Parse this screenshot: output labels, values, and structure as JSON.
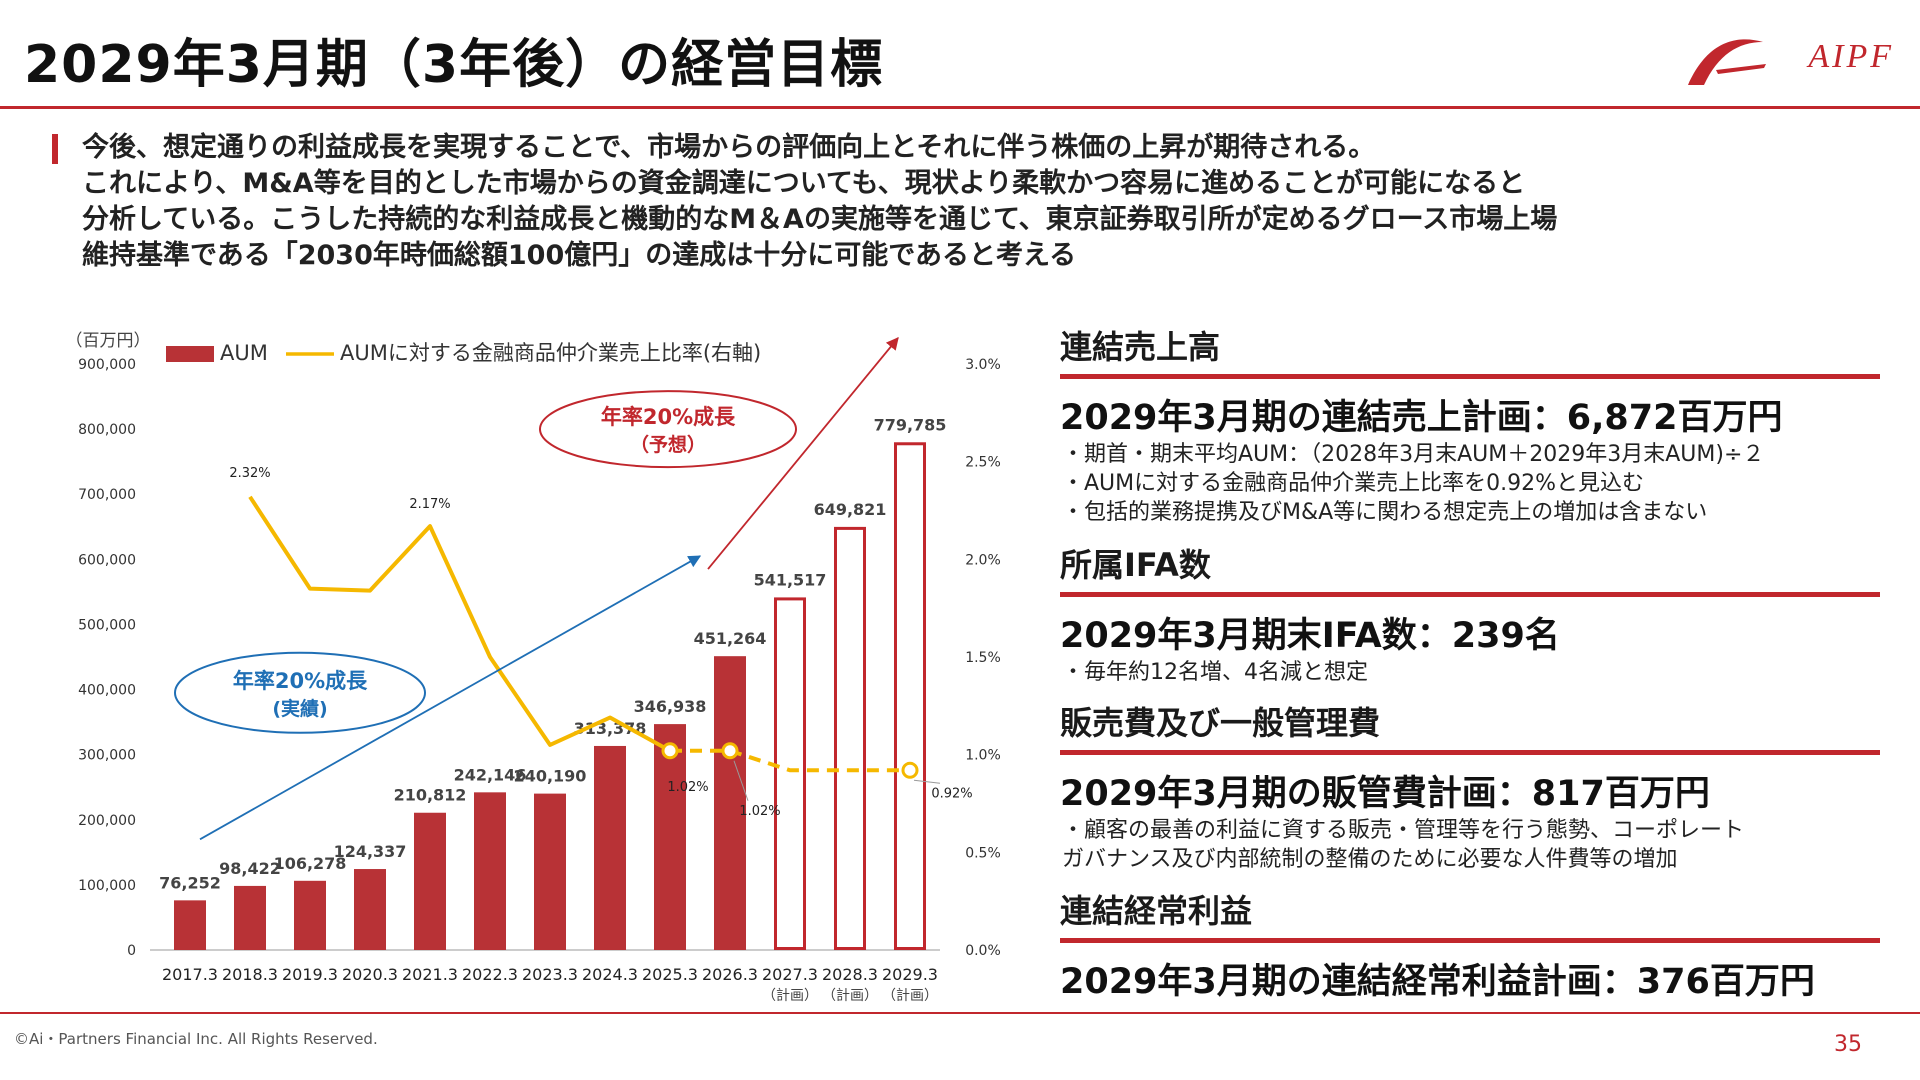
{
  "page": {
    "title": "2029年3月期（3年後）の経営目標",
    "logo_text": "AIPF",
    "intro_lines": [
      "今後、想定通りの利益成長を実現することで、市場からの評価向上とそれに伴う株価の上昇が期待される。",
      "これにより、M&A等を目的とした市場からの資金調達についても、現状より柔軟かつ容易に進めることが可能になると",
      "分析している。こうした持続的な利益成長と機動的なM＆Aの実施等を通じて、東京証券取引所が定めるグロース市場上場",
      "維持基準である「2030年時価総額100億円」の達成は十分に可能であると考える"
    ],
    "copyright": "©Ai・Partners Financial Inc. All Rights Reserved.",
    "page_number": "35"
  },
  "sections": [
    {
      "heading": "連結売上高",
      "main": "2029年3月期の連結売上計画：6,872百万円",
      "notes": [
        "・期首・期末平均AUM：（2028年3月末AUM＋2029年3月末AUM)÷２",
        "・AUMに対する金融商品仲介業売上比率を0.92%と見込む",
        "・包括的業務提携及びM&A等に関わる想定売上の増加は含まない"
      ]
    },
    {
      "heading": "所属IFA数",
      "main": "2029年3月期末IFA数：239名",
      "notes": [
        "・毎年約12名増、4名減と想定"
      ]
    },
    {
      "heading": "販売費及び一般管理費",
      "main": "2029年3月期の販管費計画：817百万円",
      "notes": [
        "・顧客の最善の利益に資する販売・管理等を行う態勢、コーポレート",
        "  ガバナンス及び内部統制の整備のために必要な人件費等の増加"
      ]
    },
    {
      "heading": "連結経常利益",
      "main": "2029年3月期の連結経常利益計画：376百万円",
      "notes": []
    }
  ],
  "chart_data": {
    "type": "bar",
    "unit_label": "（百万円）",
    "categories": [
      "2017.3",
      "2018.3",
      "2019.3",
      "2020.3",
      "2021.3",
      "2022.3",
      "2023.3",
      "2024.3",
      "2025.3",
      "2026.3",
      "2027.3",
      "2028.3",
      "2029.3"
    ],
    "category_sublabels": [
      "",
      "",
      "",
      "",
      "",
      "",
      "",
      "",
      "",
      "",
      "（計画）",
      "（計画）",
      "（計画）"
    ],
    "series": [
      {
        "name": "AUM",
        "axis": "left",
        "values": [
          76252,
          98422,
          106278,
          124337,
          210812,
          242146,
          240190,
          313378,
          346938,
          451264,
          541517,
          649821,
          779785
        ],
        "labels": [
          "76,252",
          "98,422",
          "106,278",
          "124,337",
          "210,812",
          "242,146",
          "240,190",
          "313,378",
          "346,938",
          "451,264",
          "541,517",
          "649,821",
          "779,785"
        ],
        "planned_from_index": 10
      },
      {
        "name": "AUMに対する金融商品仲介業売上比率(右軸)",
        "axis": "right",
        "type": "line",
        "values": [
          null,
          2.32,
          1.85,
          1.84,
          2.17,
          1.5,
          1.05,
          1.19,
          1.02,
          1.02,
          0.92,
          0.92,
          0.92
        ],
        "forecast_from_index": 8,
        "point_labels": [
          {
            "index": 1,
            "text": "2.32%"
          },
          {
            "index": 4,
            "text": "2.17%"
          },
          {
            "index": 8,
            "text": "1.02%"
          },
          {
            "index": 9,
            "text": "1.02%"
          },
          {
            "index": 12,
            "text": "0.92%"
          }
        ]
      }
    ],
    "y_left": {
      "min": 0,
      "max": 900000,
      "ticks": [
        "0",
        "100,000",
        "200,000",
        "300,000",
        "400,000",
        "500,000",
        "600,000",
        "700,000",
        "800,000",
        "900,000"
      ]
    },
    "y_right": {
      "min": 0,
      "max": 3.0,
      "ticks": [
        "0.0%",
        "0.5%",
        "1.0%",
        "1.5%",
        "2.0%",
        "2.5%",
        "3.0%"
      ]
    },
    "annotations": [
      {
        "text": [
          "年率20%成長",
          "(実績)"
        ],
        "color": "#1f6fb5"
      },
      {
        "text": [
          "年率20%成長",
          "（予想）"
        ],
        "color": "#c1272d"
      }
    ],
    "colors": {
      "bar": "#b83236",
      "bar_planned_border": "#c1272d",
      "line": "#f5b800",
      "arrow_actual": "#1f6fb5",
      "arrow_forecast": "#c1272d"
    },
    "grid": false,
    "legend_position": "top-left"
  }
}
